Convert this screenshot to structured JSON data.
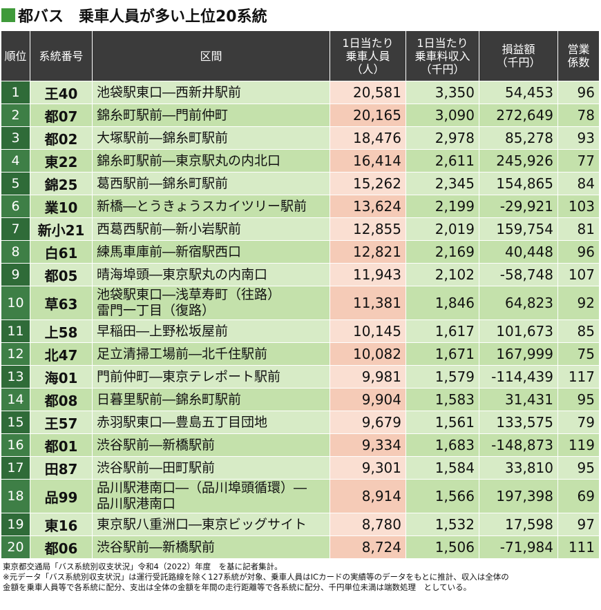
{
  "header": {
    "title": "都バス　乗車人員が多い上位20系統"
  },
  "table": {
    "columns": [
      [
        "順位"
      ],
      [
        "系統番号"
      ],
      [
        "区間"
      ],
      [
        "1日当たり",
        "乗車人員",
        "（人）"
      ],
      [
        "1日当たり",
        "乗車料収入",
        "（千円）"
      ],
      [
        "損益額",
        "（千円）"
      ],
      [
        "営業",
        "係数"
      ]
    ],
    "rows": [
      [
        "1",
        "王40",
        [
          "池袋駅東口―西新井駅前"
        ],
        "20,581",
        "3,350",
        "54,453",
        "96"
      ],
      [
        "2",
        "都07",
        [
          "錦糸町駅前―門前仲町"
        ],
        "20,165",
        "3,090",
        "272,649",
        "78"
      ],
      [
        "3",
        "都02",
        [
          "大塚駅前―錦糸町駅前"
        ],
        "18,476",
        "2,978",
        "85,278",
        "93"
      ],
      [
        "4",
        "東22",
        [
          "錦糸町駅前―東京駅丸の内北口"
        ],
        "16,414",
        "2,611",
        "245,926",
        "77"
      ],
      [
        "5",
        "錦25",
        [
          "葛西駅前―錦糸町駅前"
        ],
        "15,262",
        "2,345",
        "154,865",
        "84"
      ],
      [
        "6",
        "業10",
        [
          "新橋―とうきょうスカイツリー駅前"
        ],
        "13,624",
        "2,199",
        "-29,921",
        "103"
      ],
      [
        "7",
        "新小21",
        [
          "西葛西駅前―新小岩駅前"
        ],
        "12,855",
        "2,019",
        "159,754",
        "81"
      ],
      [
        "8",
        "白61",
        [
          "練馬車庫前―新宿駅西口"
        ],
        "12,821",
        "2,169",
        "40,448",
        "96"
      ],
      [
        "9",
        "都05",
        [
          "晴海埠頭―東京駅丸の内南口"
        ],
        "11,943",
        "2,102",
        "-58,748",
        "107"
      ],
      [
        "10",
        "草63",
        [
          "池袋駅東口―浅草寿町（往路）",
          "雷門一丁目（復路）"
        ],
        "11,381",
        "1,846",
        "64,823",
        "92"
      ],
      [
        "11",
        "上58",
        [
          "早稲田―上野松坂屋前"
        ],
        "10,145",
        "1,617",
        "101,673",
        "85"
      ],
      [
        "12",
        "北47",
        [
          "足立清掃工場前―北千住駅前"
        ],
        "10,082",
        "1,671",
        "167,999",
        "75"
      ],
      [
        "13",
        "海01",
        [
          "門前仲町―東京テレポート駅前"
        ],
        "9,981",
        "1,579",
        "-114,439",
        "117"
      ],
      [
        "14",
        "都08",
        [
          "日暮里駅前―錦糸町駅前"
        ],
        "9,904",
        "1,583",
        "31,431",
        "95"
      ],
      [
        "15",
        "王57",
        [
          "赤羽駅東口―豊島五丁目団地"
        ],
        "9,679",
        "1,561",
        "133,575",
        "79"
      ],
      [
        "16",
        "都01",
        [
          "渋谷駅前―新橋駅前"
        ],
        "9,334",
        "1,683",
        "-148,873",
        "119"
      ],
      [
        "17",
        "田87",
        [
          "渋谷駅前―田町駅前"
        ],
        "9,301",
        "1,584",
        "33,810",
        "95"
      ],
      [
        "18",
        "品99",
        [
          "品川駅港南口―（品川埠頭循環）―",
          "品川駅港南口"
        ],
        "8,914",
        "1,566",
        "197,398",
        "69"
      ],
      [
        "19",
        "東16",
        [
          "東京駅八重洲口―東京ビッグサイト"
        ],
        "8,780",
        "1,532",
        "17,598",
        "97"
      ],
      [
        "20",
        "都06",
        [
          "渋谷駅前―新橋駅前"
        ],
        "8,724",
        "1,506",
        "-71,984",
        "111"
      ]
    ]
  },
  "footer": {
    "notes": [
      "東京都交通局「バス系統別収支状況」令和4（2022）年度　を基に記者集計。",
      "※元データ「バス系統別収支状況」は運行受託路線を除く127系統が対象、乗車人員はICカードの実績等のデータをもとに推計、収入は全体の",
      "金額を乗車人員等で各系統に配分、支出は全体の金額を年間の走行距離等で各系統に配分、千円単位未満は端数処理　としている。"
    ]
  }
}
